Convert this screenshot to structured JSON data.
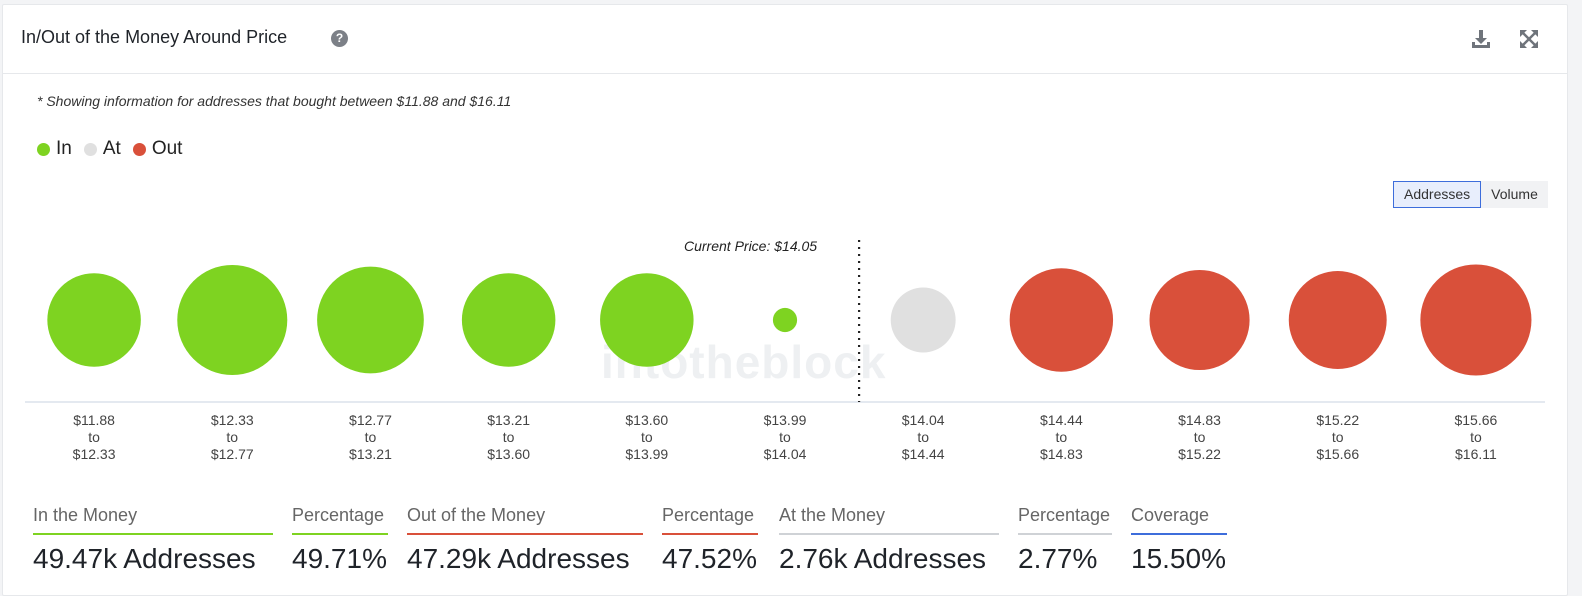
{
  "header": {
    "title": "In/Out of the Money Around Price",
    "help_icon": "?",
    "download_icon": "download-icon",
    "expand_icon": "expand-icon"
  },
  "note": "* Showing information for addresses that bought between $11.88 and $16.11",
  "legend": [
    {
      "label": "In",
      "color": "#7ed321"
    },
    {
      "label": "At",
      "color": "#e0e0e0"
    },
    {
      "label": "Out",
      "color": "#d9503a"
    }
  ],
  "toggle": {
    "addresses": "Addresses",
    "volume": "Volume",
    "selected": "Addresses"
  },
  "watermark": "intotheblock",
  "chart_data": {
    "type": "bubble",
    "current_price_label": "Current Price: $14.05",
    "current_price": 14.05,
    "series": [
      {
        "name": "In",
        "color": "#7ed321"
      },
      {
        "name": "At",
        "color": "#e0e0e0"
      },
      {
        "name": "Out",
        "color": "#d9503a"
      }
    ],
    "buckets": [
      {
        "from": "$11.88",
        "to": "$12.33",
        "status": "In",
        "relative_size": 0.85
      },
      {
        "from": "$12.33",
        "to": "$12.77",
        "status": "In",
        "relative_size": 1.0
      },
      {
        "from": "$12.77",
        "to": "$13.21",
        "status": "In",
        "relative_size": 0.97
      },
      {
        "from": "$13.21",
        "to": "$13.60",
        "status": "In",
        "relative_size": 0.85
      },
      {
        "from": "$13.60",
        "to": "$13.99",
        "status": "In",
        "relative_size": 0.85
      },
      {
        "from": "$13.99",
        "to": "$14.04",
        "status": "In",
        "relative_size": 0.22
      },
      {
        "from": "$14.04",
        "to": "$14.44",
        "status": "At",
        "relative_size": 0.59
      },
      {
        "from": "$14.44",
        "to": "$14.83",
        "status": "Out",
        "relative_size": 0.94
      },
      {
        "from": "$14.83",
        "to": "$15.22",
        "status": "Out",
        "relative_size": 0.91
      },
      {
        "from": "$15.22",
        "to": "$15.66",
        "status": "Out",
        "relative_size": 0.89
      },
      {
        "from": "$15.66",
        "to": "$16.11",
        "status": "Out",
        "relative_size": 1.01
      }
    ],
    "to_word": "to"
  },
  "stats": [
    {
      "label": "In the Money",
      "value": "49.47k Addresses",
      "color": "#7ed321"
    },
    {
      "label": "Percentage",
      "value": "49.71%",
      "color": "#7ed321"
    },
    {
      "label": "Out of the Money",
      "value": "47.29k Addresses",
      "color": "#d9503a"
    },
    {
      "label": "Percentage",
      "value": "47.52%",
      "color": "#d9503a"
    },
    {
      "label": "At the Money",
      "value": "2.76k Addresses",
      "color": "#cfd2d6"
    },
    {
      "label": "Percentage",
      "value": "2.77%",
      "color": "#cfd2d6"
    },
    {
      "label": "Coverage",
      "value": "15.50%",
      "color": "#3d6ddb"
    }
  ]
}
